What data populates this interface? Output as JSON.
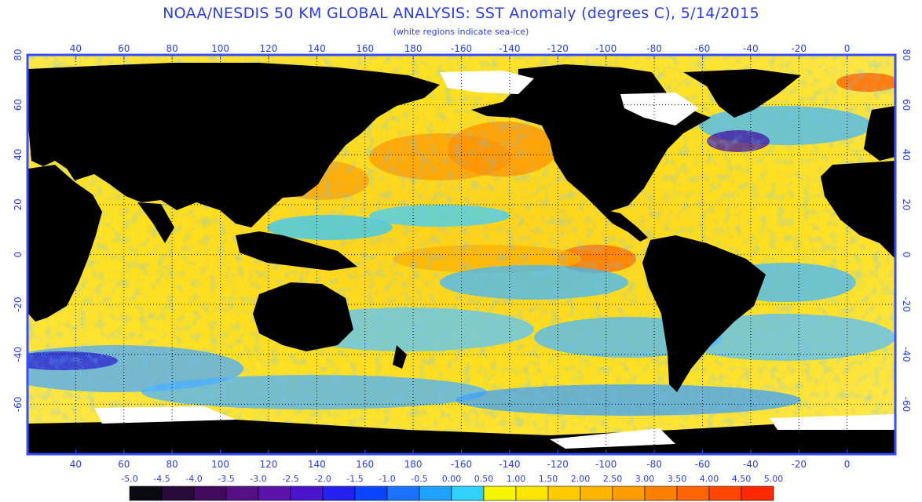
{
  "header": {
    "title": "NOAA/NESDIS 50 KM GLOBAL ANALYSIS: SST Anomaly (degrees C), 5/14/2015",
    "subtitle": "(white regions indicate sea-ice)"
  },
  "map": {
    "lon_start": 20,
    "lon_end": 380,
    "lat_top": 80,
    "lat_bottom": -80,
    "lon_tick_labels": [
      "40",
      "60",
      "80",
      "100",
      "120",
      "140",
      "160",
      "180",
      "-160",
      "-140",
      "-120",
      "-100",
      "-80",
      "-60",
      "-40",
      "-20",
      "0"
    ],
    "lon_tick_values": [
      40,
      60,
      80,
      100,
      120,
      140,
      160,
      180,
      200,
      220,
      240,
      260,
      280,
      300,
      320,
      340,
      360
    ],
    "lat_tick_values": [
      80,
      60,
      40,
      20,
      0,
      -20,
      -40,
      -60
    ],
    "lat_tick_labels": [
      "80",
      "60",
      "40",
      "20",
      "0",
      "-20",
      "-40",
      "-60"
    ],
    "grid_dotted": true,
    "land_color": "#000000",
    "ice_color": "#ffffff",
    "border_color": "#3a4cff"
  },
  "colorbar": {
    "labels": [
      "-5.0",
      "-4.5",
      "-4.0",
      "-3.5",
      "-3.0",
      "-2.5",
      "-2.0",
      "-1.5",
      "-1.0",
      "-0.5",
      "0.00",
      "0.50",
      "1.00",
      "1.50",
      "2.00",
      "2.50",
      "3.00",
      "3.50",
      "4.00",
      "4.50",
      "5.00"
    ],
    "colors": [
      "#0a0a12",
      "#2a0a3a",
      "#420c5e",
      "#540f84",
      "#5a12a8",
      "#4a14cc",
      "#2420f0",
      "#0a44ff",
      "#1a72ff",
      "#1ea2ff",
      "#30d0ff",
      "#f6f600",
      "#ffe600",
      "#ffcc00",
      "#ffb400",
      "#ff9c00",
      "#ff8000",
      "#ff6400",
      "#ff4600",
      "#ff2800"
    ]
  }
}
